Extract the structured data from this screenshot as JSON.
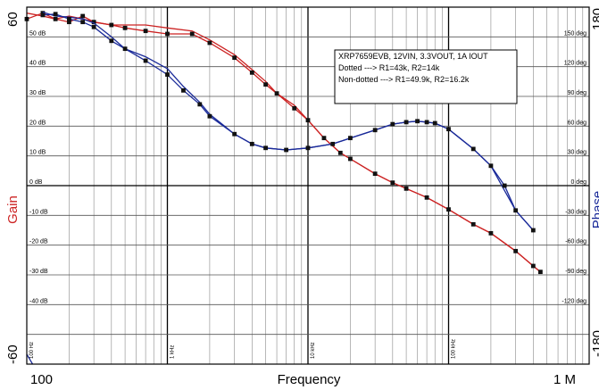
{
  "chart_data": {
    "type": "line",
    "xlabel": "Frequency",
    "ylabel_left": "Gain",
    "ylabel_right": "Phase",
    "x_scale": "log",
    "x_range_hz": [
      100,
      1000000
    ],
    "x_end_labels": [
      "100",
      "1 M"
    ],
    "x_decade_labels": [
      {
        "hz": 100,
        "label": "100 Hz"
      },
      {
        "hz": 1000,
        "label": "1 kHz"
      },
      {
        "hz": 10000,
        "label": "10 kHz"
      },
      {
        "hz": 100000,
        "label": "100 kHz"
      }
    ],
    "gain_range_db": [
      -60,
      60
    ],
    "gain_end_labels": [
      "60",
      "-60"
    ],
    "gain_ticks": [
      "50 dB",
      "40 dB",
      "30 dB",
      "20 dB",
      "10 dB",
      "0 dB",
      "-10 dB",
      "-20 dB",
      "-30 dB",
      "-40 dB"
    ],
    "phase_range_deg": [
      -180,
      180
    ],
    "phase_end_labels": [
      "180",
      "-180"
    ],
    "phase_ticks": [
      "150 deg",
      "120 deg",
      "90 deg",
      "60 deg",
      "30 deg",
      "0 deg",
      "-30 deg",
      "-60 deg",
      "-90 deg",
      "-120 deg"
    ],
    "grid": true,
    "colors": {
      "gain": "#cc2222",
      "phase": "#1a2a99",
      "marker": "#111111"
    },
    "annotation": [
      "XRP7659EVB, 12VIN, 3.3VOUT, 1A IOUT",
      "Dotted ---> R1=43k, R2=14k",
      "Non-dotted ---> R1=49.9k, R2=16.2k"
    ],
    "series": [
      {
        "quantity": "gain",
        "style": "solid",
        "axis": "left",
        "points": [
          [
            100,
            58
          ],
          [
            130,
            57
          ],
          [
            160,
            56
          ],
          [
            200,
            57
          ],
          [
            250,
            56
          ],
          [
            300,
            55
          ],
          [
            400,
            54
          ],
          [
            500,
            54
          ],
          [
            700,
            54
          ],
          [
            1000,
            53
          ],
          [
            1500,
            52
          ],
          [
            2000,
            49
          ],
          [
            3000,
            44
          ],
          [
            4000,
            39
          ],
          [
            5000,
            35
          ],
          [
            6000,
            31
          ],
          [
            8000,
            27
          ],
          [
            10000,
            22
          ],
          [
            13000,
            16
          ],
          [
            17000,
            11
          ],
          [
            20000,
            9
          ],
          [
            30000,
            4
          ],
          [
            40000,
            1
          ],
          [
            50000,
            -1
          ],
          [
            70000,
            -4
          ],
          [
            100000,
            -8
          ],
          [
            150000,
            -13
          ],
          [
            200000,
            -16
          ],
          [
            300000,
            -22
          ],
          [
            400000,
            -27
          ],
          [
            450000,
            -29
          ]
        ]
      },
      {
        "quantity": "gain",
        "style": "dotted",
        "axis": "left",
        "points": [
          [
            100,
            56
          ],
          [
            130,
            58
          ],
          [
            160,
            56
          ],
          [
            200,
            55
          ],
          [
            250,
            57
          ],
          [
            300,
            55
          ],
          [
            400,
            54
          ],
          [
            500,
            53
          ],
          [
            700,
            52
          ],
          [
            1000,
            51
          ],
          [
            1500,
            51
          ],
          [
            2000,
            48
          ],
          [
            3000,
            43
          ],
          [
            4000,
            38
          ],
          [
            5000,
            34
          ],
          [
            6000,
            31
          ],
          [
            8000,
            26
          ],
          [
            10000,
            22
          ],
          [
            13000,
            16
          ],
          [
            17000,
            11
          ],
          [
            20000,
            9
          ],
          [
            30000,
            4
          ],
          [
            40000,
            1
          ],
          [
            50000,
            -1
          ],
          [
            70000,
            -4
          ],
          [
            100000,
            -8
          ],
          [
            150000,
            -13
          ],
          [
            200000,
            -16
          ],
          [
            300000,
            -22
          ],
          [
            400000,
            -27
          ],
          [
            450000,
            -29
          ]
        ]
      },
      {
        "quantity": "phase",
        "style": "solid",
        "axis": "right",
        "points": [
          [
            100,
            -170
          ],
          [
            110,
            -180
          ],
          [
            130,
            175
          ],
          [
            160,
            171
          ],
          [
            200,
            170
          ],
          [
            250,
            168
          ],
          [
            300,
            164
          ],
          [
            400,
            150
          ],
          [
            500,
            138
          ],
          [
            700,
            130
          ],
          [
            1000,
            118
          ],
          [
            1300,
            100
          ],
          [
            1700,
            84
          ],
          [
            2000,
            72
          ],
          [
            3000,
            52
          ],
          [
            4000,
            42
          ],
          [
            5000,
            38
          ],
          [
            7000,
            36
          ],
          [
            10000,
            38
          ],
          [
            15000,
            42
          ],
          [
            20000,
            48
          ],
          [
            30000,
            56
          ],
          [
            40000,
            62
          ],
          [
            50000,
            64
          ],
          [
            60000,
            65
          ],
          [
            70000,
            64
          ],
          [
            80000,
            63
          ],
          [
            100000,
            57
          ],
          [
            150000,
            37
          ],
          [
            200000,
            20
          ],
          [
            250000,
            -5
          ],
          [
            300000,
            -25
          ],
          [
            400000,
            -45
          ]
        ]
      },
      {
        "quantity": "phase",
        "style": "dotted",
        "axis": "right",
        "points": [
          [
            130,
            172
          ],
          [
            160,
            173
          ],
          [
            200,
            168
          ],
          [
            250,
            165
          ],
          [
            300,
            160
          ],
          [
            400,
            146
          ],
          [
            500,
            138
          ],
          [
            700,
            126
          ],
          [
            1000,
            112
          ],
          [
            1300,
            96
          ],
          [
            1700,
            82
          ],
          [
            2000,
            70
          ],
          [
            3000,
            52
          ],
          [
            4000,
            42
          ],
          [
            5000,
            38
          ],
          [
            7000,
            36
          ],
          [
            10000,
            38
          ],
          [
            15000,
            42
          ],
          [
            20000,
            48
          ],
          [
            30000,
            56
          ],
          [
            40000,
            62
          ],
          [
            50000,
            64
          ],
          [
            60000,
            65
          ],
          [
            70000,
            64
          ],
          [
            80000,
            63
          ],
          [
            100000,
            57
          ],
          [
            150000,
            37
          ],
          [
            200000,
            20
          ],
          [
            250000,
            0
          ],
          [
            300000,
            -25
          ],
          [
            400000,
            -45
          ]
        ]
      }
    ]
  }
}
